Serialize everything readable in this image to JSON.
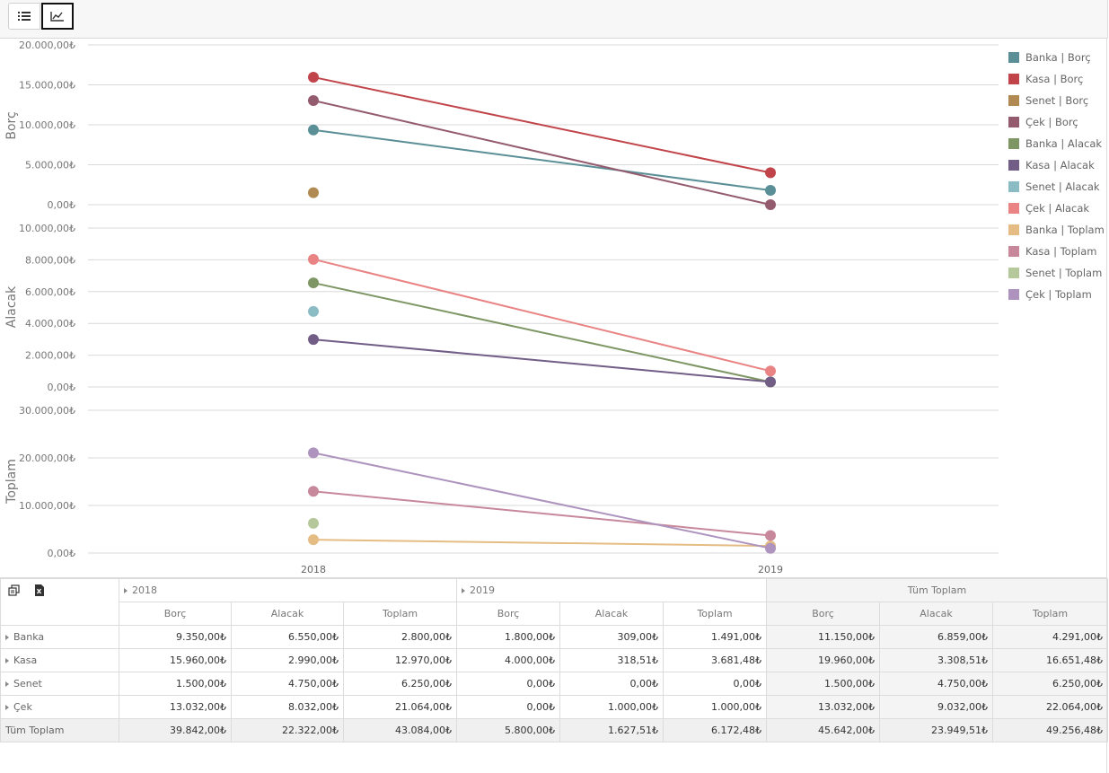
{
  "toolbar": {
    "buttons": [
      {
        "name": "list-view-button",
        "icon": "list-icon"
      },
      {
        "name": "chart-view-button",
        "icon": "line-chart-icon"
      }
    ]
  },
  "chart_data": [
    {
      "type": "line",
      "categories": [
        "2018",
        "2019"
      ],
      "ylabel": "Borç",
      "ylim": [
        0,
        20000
      ],
      "yticks": [
        "0,00₺",
        "5.000,00₺",
        "10.000,00₺",
        "15.000,00₺",
        "20.000,00₺"
      ],
      "series": [
        {
          "name": "Banka | Borç",
          "color": "#5b8f97",
          "values": [
            9350,
            1800
          ]
        },
        {
          "name": "Kasa | Borç",
          "color": "#c0444a",
          "values": [
            15960,
            4000
          ]
        },
        {
          "name": "Senet | Borç",
          "color": "#b08a52",
          "values": [
            1500,
            0
          ]
        },
        {
          "name": "Çek | Borç",
          "color": "#945a6e",
          "values": [
            13032,
            0
          ]
        }
      ]
    },
    {
      "type": "line",
      "categories": [
        "2018",
        "2019"
      ],
      "ylabel": "Alacak",
      "ylim": [
        0,
        10000
      ],
      "yticks": [
        "0,00₺",
        "2.000,00₺",
        "4.000,00₺",
        "6.000,00₺",
        "8.000,00₺",
        "10.000,00₺"
      ],
      "series": [
        {
          "name": "Banka | Alacak",
          "color": "#7d9664",
          "values": [
            6550,
            309
          ]
        },
        {
          "name": "Kasa | Alacak",
          "color": "#725d86",
          "values": [
            2990,
            318.51
          ]
        },
        {
          "name": "Senet | Alacak",
          "color": "#8bbcc4",
          "values": [
            4750,
            0
          ]
        },
        {
          "name": "Çek | Alacak",
          "color": "#e98384",
          "values": [
            8032,
            1000
          ]
        }
      ]
    },
    {
      "type": "line",
      "categories": [
        "2018",
        "2019"
      ],
      "ylabel": "Toplam",
      "ylim": [
        0,
        30000
      ],
      "yticks": [
        "0,00₺",
        "10.000,00₺",
        "20.000,00₺",
        "30.000,00₺"
      ],
      "series": [
        {
          "name": "Banka | Toplam",
          "color": "#e5bc84",
          "values": [
            2800,
            1491
          ]
        },
        {
          "name": "Kasa | Toplam",
          "color": "#c8889c",
          "values": [
            12970,
            3681.48
          ]
        },
        {
          "name": "Senet | Toplam",
          "color": "#b5c89c",
          "values": [
            6250,
            0
          ]
        },
        {
          "name": "Çek | Toplam",
          "color": "#ad93bd",
          "values": [
            21064,
            1000
          ]
        }
      ]
    }
  ],
  "legend_position": "right",
  "pivot": {
    "years": [
      "2018",
      "2019"
    ],
    "grand_total_label": "Tüm Toplam",
    "measures": [
      "Borç",
      "Alacak",
      "Toplam"
    ],
    "rows": [
      {
        "label": "Banka",
        "cells": [
          "9.350,00₺",
          "6.550,00₺",
          "2.800,00₺",
          "1.800,00₺",
          "309,00₺",
          "1.491,00₺",
          "11.150,00₺",
          "6.859,00₺",
          "4.291,00₺"
        ]
      },
      {
        "label": "Kasa",
        "cells": [
          "15.960,00₺",
          "2.990,00₺",
          "12.970,00₺",
          "4.000,00₺",
          "318,51₺",
          "3.681,48₺",
          "19.960,00₺",
          "3.308,51₺",
          "16.651,48₺"
        ]
      },
      {
        "label": "Senet",
        "cells": [
          "1.500,00₺",
          "4.750,00₺",
          "6.250,00₺",
          "0,00₺",
          "0,00₺",
          "0,00₺",
          "1.500,00₺",
          "4.750,00₺",
          "6.250,00₺"
        ]
      },
      {
        "label": "Çek",
        "cells": [
          "13.032,00₺",
          "8.032,00₺",
          "21.064,00₺",
          "0,00₺",
          "1.000,00₺",
          "1.000,00₺",
          "13.032,00₺",
          "9.032,00₺",
          "22.064,00₺"
        ]
      }
    ],
    "total_row": {
      "label": "Tüm Toplam",
      "cells": [
        "39.842,00₺",
        "22.322,00₺",
        "43.084,00₺",
        "5.800,00₺",
        "1.627,51₺",
        "6.172,48₺",
        "45.642,00₺",
        "23.949,51₺",
        "49.256,48₺"
      ]
    }
  }
}
